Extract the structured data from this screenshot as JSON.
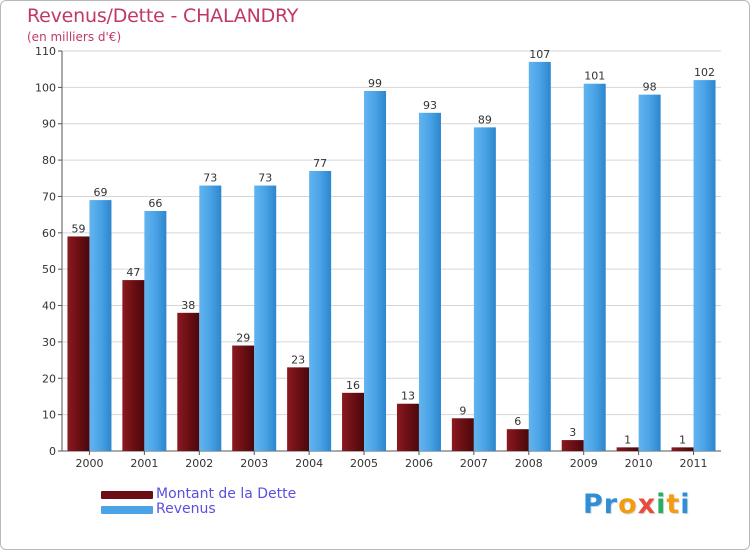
{
  "title": "Revenus/Dette - CHALANDRY",
  "subtitle": "(en milliers d'€)",
  "logo": {
    "text": "Proxiti",
    "colors": [
      "#2f8fd6",
      "#2f8fd6",
      "#f39c12",
      "#e74c3c",
      "#27ae60",
      "#f39c12",
      "#2f8fd6"
    ]
  },
  "legend": {
    "items": [
      {
        "label": "Montant de la Dette",
        "color": "#6b0f14"
      },
      {
        "label": "Revenus",
        "color": "#4aa3e6"
      }
    ]
  },
  "chart_data": {
    "type": "bar",
    "categories": [
      "2000",
      "2001",
      "2002",
      "2003",
      "2004",
      "2005",
      "2006",
      "2007",
      "2008",
      "2009",
      "2010",
      "2011"
    ],
    "series": [
      {
        "name": "Montant de la Dette",
        "values": [
          59,
          47,
          38,
          29,
          23,
          16,
          13,
          9,
          6,
          3,
          1,
          1
        ],
        "color": "#6b0f14"
      },
      {
        "name": "Revenus",
        "values": [
          69,
          66,
          73,
          73,
          77,
          99,
          93,
          89,
          107,
          101,
          98,
          102
        ],
        "color": "#4aa3e6"
      }
    ],
    "yticks": [
      0,
      10,
      20,
      30,
      40,
      50,
      60,
      70,
      80,
      90,
      100,
      110
    ],
    "ylim": [
      0,
      110
    ],
    "grid": true,
    "legend_position": "bottom-left",
    "xlabel": "",
    "ylabel": ""
  }
}
